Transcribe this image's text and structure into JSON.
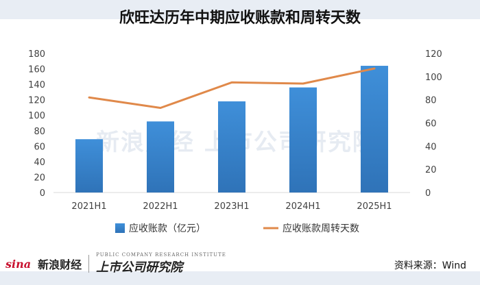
{
  "title": "欣旺达历年中期应收账款和周转天数",
  "source": "资料来源：Wind",
  "watermark": "新浪财经 上市公司研究院",
  "footer": {
    "sina": "sina",
    "sina_cai": "新浪财经",
    "research": "上市公司研究院",
    "research_en": "PUBLIC COMPANY RESEARCH INSTITUTE"
  },
  "colors": {
    "bar": "#3f8fd9",
    "bar_dark": "#2f73b8",
    "line": "#e0894a",
    "axis_text": "#404040",
    "grid": "#d9d9d9",
    "band": "#e8edf4"
  },
  "chart_data": {
    "type": "bar",
    "title": "欣旺达历年中期应收账款和周转天数",
    "categories": [
      "2021H1",
      "2022H1",
      "2023H1",
      "2024H1",
      "2025H1"
    ],
    "series": [
      {
        "name": "应收账款（亿元）",
        "type": "bar",
        "axis": "left",
        "values": [
          69,
          92,
          118,
          136,
          164
        ]
      },
      {
        "name": "应收账款周转天数",
        "type": "line",
        "axis": "right",
        "values": [
          82,
          73,
          95,
          94,
          107
        ]
      }
    ],
    "y_left": {
      "min": 0,
      "max": 180,
      "ticks": [
        0,
        20,
        40,
        60,
        80,
        100,
        120,
        140,
        160,
        180
      ]
    },
    "y_right": {
      "min": 0,
      "max": 120,
      "ticks": [
        0,
        20,
        40,
        60,
        80,
        100,
        120
      ]
    },
    "grid": false,
    "legend_position": "bottom"
  }
}
